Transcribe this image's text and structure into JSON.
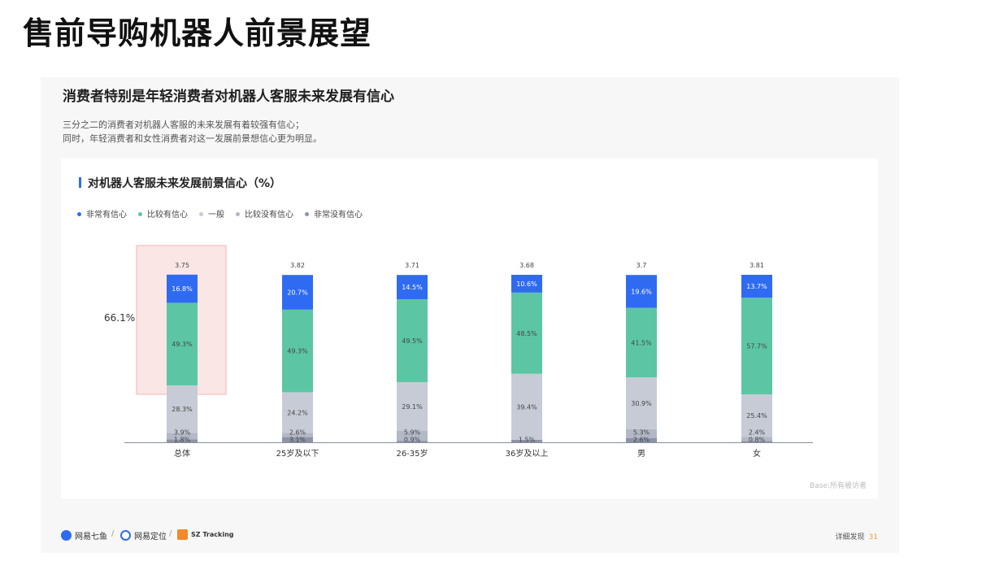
{
  "page_title": "售前导购机器人前景展望",
  "slide": {
    "heading": "消费者特别是年轻消费者对机器人客服未来发展有信心",
    "desc_lines": [
      "三分之二的消费者对机器人客服的未来发展有着较强有信心；",
      "同时，年轻消费者和女性消费者对这一发展前景想信心更为明显。"
    ],
    "source": "Base:所有被访者",
    "page_label": "详细发现",
    "page_number": "31",
    "logos": [
      "网易七鱼",
      "网易定位",
      "SZ Tracking"
    ]
  },
  "colors": {
    "very_confident": "#2f6bf2",
    "confident": "#5cc6a4",
    "neutral": "#c7cbd6",
    "not_confident": "#b3b8c6",
    "very_not_confident": "#8d94a7",
    "highlight_fill": "#fbe6e6",
    "highlight_stroke": "#f3b3b3"
  },
  "chart_data": {
    "type": "bar",
    "stacked": true,
    "title": "对机器人客服未来发展前景信心（%）",
    "categories": [
      "总体",
      "25岁及以下",
      "26-35岁",
      "36岁及以上",
      "男",
      "女"
    ],
    "scores": [
      "3.75",
      "3.82",
      "3.71",
      "3.68",
      "3.7",
      "3.81"
    ],
    "series": [
      {
        "name": "非常没有信心",
        "values": [
          1.8,
          3.1,
          0.9,
          1.5,
          2.6,
          0.8
        ],
        "labels": [
          "1.8%",
          "3.1%",
          "0.9%",
          "1.5%",
          "2.6%",
          "0.8%"
        ]
      },
      {
        "name": "比较没有信心",
        "values": [
          3.9,
          2.6,
          5.9,
          0,
          5.3,
          2.4
        ],
        "labels": [
          "3.9%",
          "2.6%",
          "5.9%",
          "",
          "5.3%",
          "2.4%"
        ]
      },
      {
        "name": "一般",
        "values": [
          28.3,
          24.2,
          29.1,
          39.4,
          30.9,
          25.4
        ],
        "labels": [
          "28.3%",
          "24.2%",
          "29.1%",
          "39.4%",
          "30.9%",
          "25.4%"
        ]
      },
      {
        "name": "比较有信心",
        "values": [
          49.3,
          49.3,
          49.5,
          48.5,
          41.5,
          57.7
        ],
        "labels": [
          "49.3%",
          "49.3%",
          "49.5%",
          "48.5%",
          "41.5%",
          "57.7%"
        ]
      },
      {
        "name": "非常有信心",
        "values": [
          16.8,
          20.7,
          14.5,
          10.6,
          19.6,
          13.7
        ],
        "labels": [
          "16.8%",
          "20.7%",
          "14.5%",
          "10.6%",
          "19.6%",
          "13.7%"
        ]
      }
    ],
    "legend_order": [
      "非常有信心",
      "比较有信心",
      "一般",
      "比较没有信心",
      "非常没有信心"
    ],
    "legend_position": "top-left",
    "highlight": {
      "category": "总体",
      "label": "66.1%"
    },
    "ylim": [
      0,
      100
    ],
    "grid": false
  }
}
